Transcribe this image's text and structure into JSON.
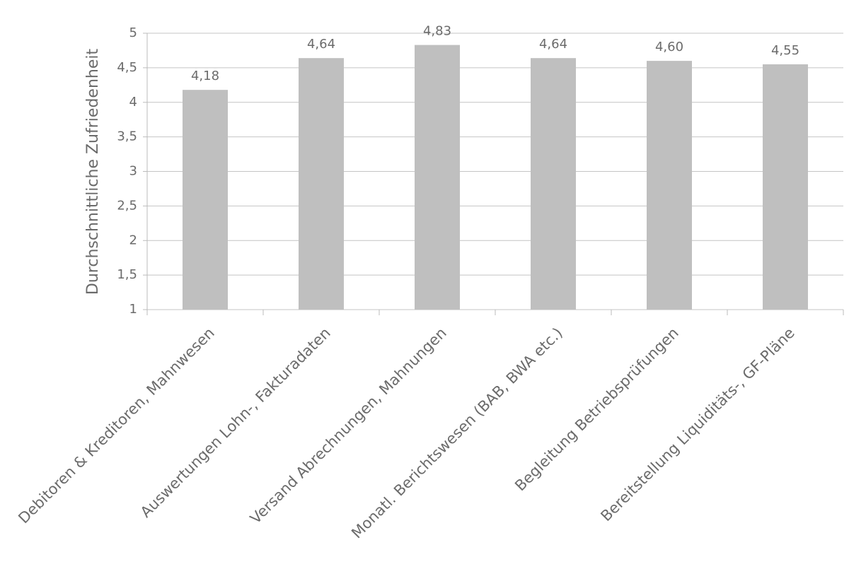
{
  "chart_data": {
    "type": "bar",
    "y_axis_label": "Durchschnittliche Zufriedenheit",
    "categories": [
      "Debitoren & Kreditoren, Mahnwesen",
      "Auswertungen Lohn-, Fakturadaten",
      "Versand Abrechnungen, Mahnungen",
      "Monatl. Berichtswesen (BAB, BWA etc.)",
      "Begleitung Betriebsprüfungen",
      "Bereitstellung Liquiditäts-, GF-Pläne"
    ],
    "values": [
      4.18,
      4.64,
      4.83,
      4.64,
      4.6,
      4.55
    ],
    "value_labels": [
      "4,18",
      "4,64",
      "4,83",
      "4,64",
      "4,60",
      "4,55"
    ],
    "color": "#bfbfbf",
    "ylim": [
      1,
      5
    ],
    "yticks": [
      1,
      {
        "value": 1.5,
        "label": "1,5"
      },
      2,
      {
        "value": 2.5,
        "label": "2,5"
      },
      3,
      {
        "value": 3.5,
        "label": "3,5"
      },
      4,
      {
        "value": 4.5,
        "label": "4,5"
      },
      5
    ],
    "grid": true
  }
}
